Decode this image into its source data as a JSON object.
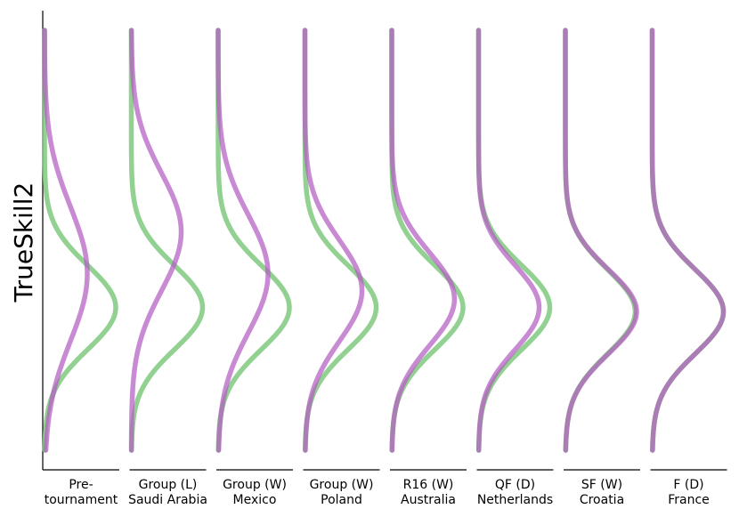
{
  "chart_data": {
    "type": "line",
    "ylabel": "TrueSkill2",
    "legend": "none",
    "grid": false,
    "colors": {
      "green": "#7fc97f",
      "purple": "#b35dc0",
      "overlap": "#7a3f78"
    },
    "stages": [
      {
        "line1": "Pre-",
        "line2": "tournament",
        "green": {
          "mu": 0.66,
          "sigma": 0.1,
          "amp": 1.0
        },
        "purple": {
          "mu": 0.58,
          "sigma": 0.16,
          "amp": 0.6
        }
      },
      {
        "line1": "Group (L)",
        "line2": "Saudi Arabia",
        "green": {
          "mu": 0.66,
          "sigma": 0.1,
          "amp": 1.0
        },
        "purple": {
          "mu": 0.48,
          "sigma": 0.14,
          "amp": 0.7
        }
      },
      {
        "line1": "Group (W)",
        "line2": "Mexico",
        "green": {
          "mu": 0.66,
          "sigma": 0.1,
          "amp": 1.0
        },
        "purple": {
          "mu": 0.58,
          "sigma": 0.14,
          "amp": 0.7
        }
      },
      {
        "line1": "Group (W)",
        "line2": "Poland",
        "green": {
          "mu": 0.66,
          "sigma": 0.1,
          "amp": 1.0
        },
        "purple": {
          "mu": 0.62,
          "sigma": 0.12,
          "amp": 0.8
        }
      },
      {
        "line1": "R16 (W)",
        "line2": "Australia",
        "green": {
          "mu": 0.66,
          "sigma": 0.1,
          "amp": 1.0
        },
        "purple": {
          "mu": 0.64,
          "sigma": 0.11,
          "amp": 0.88
        }
      },
      {
        "line1": "QF (D)",
        "line2": "Netherlands",
        "green": {
          "mu": 0.66,
          "sigma": 0.1,
          "amp": 1.0
        },
        "purple": {
          "mu": 0.66,
          "sigma": 0.1,
          "amp": 0.85
        }
      },
      {
        "line1": "SF (W)",
        "line2": "Croatia",
        "green": {
          "mu": 0.67,
          "sigma": 0.1,
          "amp": 0.98
        },
        "purple": {
          "mu": 0.67,
          "sigma": 0.1,
          "amp": 1.0
        }
      },
      {
        "line1": "F (D)",
        "line2": "France",
        "green": {
          "mu": 0.67,
          "sigma": 0.1,
          "amp": 1.0
        },
        "purple": {
          "mu": 0.67,
          "sigma": 0.1,
          "amp": 1.0
        }
      }
    ]
  }
}
